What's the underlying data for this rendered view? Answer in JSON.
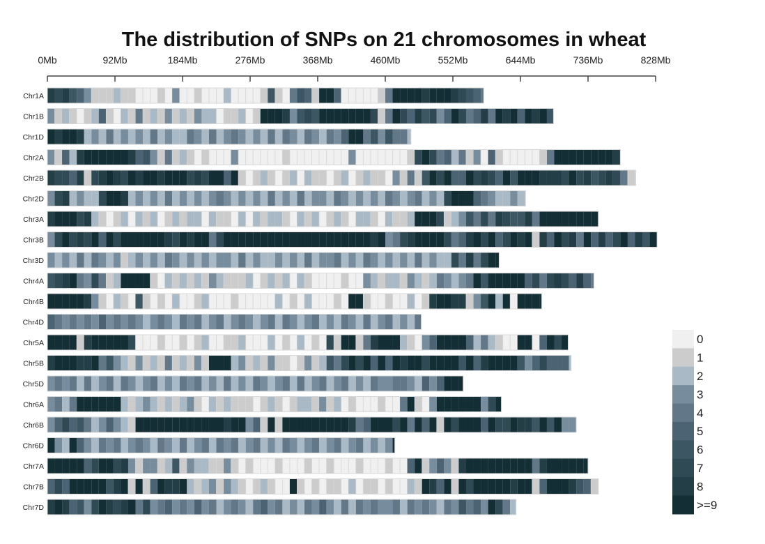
{
  "chart_data": {
    "type": "heatmap",
    "title": "The distribution of SNPs on 21 chromosomes in wheat",
    "x_axis": {
      "range_mb": [
        0,
        828
      ],
      "tick_values": [
        0,
        92,
        184,
        276,
        368,
        460,
        552,
        644,
        736,
        828
      ],
      "tick_labels": [
        "0Mb",
        "92Mb",
        "184Mb",
        "276Mb",
        "368Mb",
        "460Mb",
        "552Mb",
        "644Mb",
        "736Mb",
        "828Mb"
      ]
    },
    "bin_size_mb": 10,
    "legend": {
      "placement": "bottom-right",
      "labels": [
        "0",
        "1",
        "2",
        "3",
        "4",
        "5",
        "6",
        "7",
        "8",
        ">=9"
      ],
      "colors": [
        "#f0f0f0",
        "#cccccc",
        "#a9bac6",
        "#778d9d",
        "#627888",
        "#4b6372",
        "#3c5663",
        "#2f4a54",
        "#243e47",
        "#142e35"
      ]
    },
    "chromosomes": [
      {
        "name": "Chr1A",
        "length_mb": 594,
        "density": "878653111211000103001000200001610465199500000149999899987654"
      },
      {
        "name": "Chr1B",
        "length_mb": 689,
        "density": "312101251021412131213220112019998367699999997149758673597458498959896"
      },
      {
        "name": "Chr1D",
        "length_mb": 495,
        "density": "98998232423232423224324234323242432432435994636442"
      },
      {
        "name": "Chr2A",
        "length_mb": 780,
        "density": "315289999998563141210100030000001000000003000000017974524130510000014999999998"
      },
      {
        "name": "Chr2B",
        "length_mb": 801,
        "density": "87758178987989989997879959101210120211012012110314169795597875969998887978678741"
      },
      {
        "name": "Chr2D",
        "length_mb": 651,
        "density": "37823227998232324232323432323242324233243232324323423279995432232"
      },
      {
        "name": "Chr3A",
        "length_mb": 750,
        "density": "899978210120212012122021102021221021201210221021129997123647487668499999999"
      },
      {
        "name": "Chr3B",
        "length_mb": 830,
        "density": "37978795979999998798994799999999999999999999893478999974589795798918597849585795869"
      },
      {
        "name": "Chr3D",
        "length_mb": 615,
        "density": "32324243231232324323232332423223232423342324323232423227484799969"
      },
      {
        "name": "Chr4A",
        "length_mb": 744,
        "density": "678943741299991021212132111201212021000010032122132124323496999995747875854"
      },
      {
        "name": "Chr4B",
        "length_mb": 673,
        "density": "99999831021061010200120001000002010200010991001002018998813692909999"
      },
      {
        "name": "Chr4D",
        "length_mb": 509,
        "density": "543434353434323432434234234323424323423243242342324"
      },
      {
        "name": "Chr5A",
        "length_mb": 709,
        "density": "99991899999700010010120011200020102010719914899921035999952421009905979"
      },
      {
        "name": "Chr5B",
        "length_mb": 713,
        "density": "899988946321312141213199923121311013126479795959899799996958999963575552"
      },
      {
        "name": "Chr5D",
        "length_mb": 566,
        "density": "343424234243234232434232423243234242342342324334432535999"
      },
      {
        "name": "Chr6A",
        "length_mb": 618,
        "density": "34249999992123212123102121110121012213120100010049103999999379"
      },
      {
        "name": "Chr6B",
        "length_mb": 720,
        "density": "35756423532199999999999989935191999999999845999794959197999597798869693"
      },
      {
        "name": "Chr6D",
        "length_mb": 473,
        "density": "932953243423432432423424342342324323423423423239"
      },
      {
        "name": "Chr7A",
        "length_mb": 736,
        "density": "99999579978313312613221131010001000100100010001005913531899999999948999999"
      },
      {
        "name": "Chr7B",
        "length_mb": 750,
        "density": "575999996891915988921231321012100910101102011010021985919799999899159998651"
      },
      {
        "name": "Chr7D",
        "length_mb": 638,
        "density": "8985637987894734534353423432453423243532424343342434324364539742"
      }
    ]
  }
}
